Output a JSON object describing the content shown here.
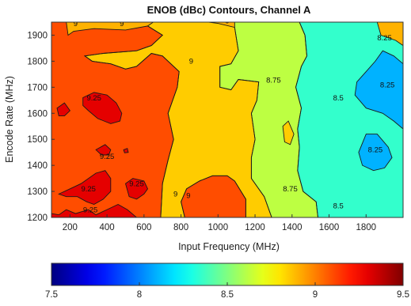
{
  "chart_data": {
    "type": "contour",
    "title": "ENOB (dBc) Contours, Channel A",
    "xlabel": "Input Frequency (MHz)",
    "ylabel": "Encode Rate (MHz)",
    "xlim": [
      100,
      2000
    ],
    "ylim": [
      1200,
      1950
    ],
    "x_ticks": [
      "200",
      "400",
      "600",
      "800",
      "1000",
      "1200",
      "1400",
      "1600",
      "1800"
    ],
    "y_ticks": [
      "1200",
      "1300",
      "1400",
      "1500",
      "1600",
      "1700",
      "1800",
      "1900"
    ],
    "colorbar": {
      "min": 7.5,
      "max": 9.5,
      "ticks": [
        "7.5",
        "8",
        "8.5",
        "9",
        "9.5"
      ],
      "colormap": "jet"
    },
    "contour_levels": [
      8.25,
      8.5,
      8.75,
      9,
      9.25
    ],
    "contour_labels": [
      {
        "text": "9",
        "x": 230,
        "y": 1935
      },
      {
        "text": "9",
        "x": 480,
        "y": 1935
      },
      {
        "text": "9",
        "x": 1050,
        "y": 1945
      },
      {
        "text": "9",
        "x": 855,
        "y": 1790
      },
      {
        "text": "8.75",
        "x": 1300,
        "y": 1718
      },
      {
        "text": "8.5",
        "x": 1650,
        "y": 1650
      },
      {
        "text": "8.25",
        "x": 1900,
        "y": 1880
      },
      {
        "text": "8.25",
        "x": 1915,
        "y": 1700
      },
      {
        "text": "8.25",
        "x": 1850,
        "y": 1450
      },
      {
        "text": "9.25",
        "x": 330,
        "y": 1650
      },
      {
        "text": "9.25",
        "x": 400,
        "y": 1425
      },
      {
        "text": "9.25",
        "x": 300,
        "y": 1300
      },
      {
        "text": "9.25",
        "x": 560,
        "y": 1320
      },
      {
        "text": "9.25",
        "x": 310,
        "y": 1220
      },
      {
        "text": "9",
        "x": 770,
        "y": 1280
      },
      {
        "text": "9",
        "x": 840,
        "y": 1275
      },
      {
        "text": "8.75",
        "x": 1390,
        "y": 1300
      },
      {
        "text": "8.5",
        "x": 1650,
        "y": 1235
      }
    ],
    "regions": [
      {
        "level": 9,
        "points": [
          [
            100,
            1950
          ],
          [
            180,
            1950
          ],
          [
            190,
            1900
          ],
          [
            220,
            1915
          ],
          [
            330,
            1925
          ],
          [
            500,
            1920
          ],
          [
            620,
            1935
          ],
          [
            700,
            1900
          ],
          [
            640,
            1860
          ],
          [
            560,
            1840
          ],
          [
            380,
            1830
          ],
          [
            280,
            1820
          ],
          [
            320,
            1800
          ],
          [
            420,
            1790
          ],
          [
            500,
            1770
          ],
          [
            560,
            1780
          ],
          [
            640,
            1830
          ],
          [
            700,
            1820
          ],
          [
            790,
            1760
          ],
          [
            780,
            1700
          ],
          [
            730,
            1600
          ],
          [
            760,
            1500
          ],
          [
            730,
            1420
          ],
          [
            700,
            1330
          ],
          [
            690,
            1200
          ],
          [
            100,
            1200
          ]
        ]
      },
      {
        "level": 9,
        "points": [
          [
            820,
            1200
          ],
          [
            800,
            1260
          ],
          [
            830,
            1310
          ],
          [
            900,
            1340
          ],
          [
            970,
            1360
          ],
          [
            1050,
            1360
          ],
          [
            1090,
            1340
          ],
          [
            1150,
            1270
          ],
          [
            1150,
            1200
          ]
        ]
      },
      {
        "level": 8.75,
        "points": [
          [
            950,
            1950
          ],
          [
            1000,
            1945
          ],
          [
            1090,
            1930
          ],
          [
            1110,
            1840
          ],
          [
            1070,
            1790
          ],
          [
            1010,
            1780
          ],
          [
            1010,
            1700
          ],
          [
            1070,
            1690
          ],
          [
            1110,
            1730
          ],
          [
            1220,
            1720
          ],
          [
            1210,
            1650
          ],
          [
            1180,
            1600
          ],
          [
            1200,
            1500
          ],
          [
            1180,
            1430
          ],
          [
            1180,
            1350
          ],
          [
            1250,
            1280
          ],
          [
            1290,
            1200
          ],
          [
            1150,
            1200
          ],
          [
            1150,
            1270
          ],
          [
            1090,
            1340
          ],
          [
            1050,
            1360
          ],
          [
            970,
            1360
          ],
          [
            900,
            1340
          ],
          [
            830,
            1310
          ],
          [
            800,
            1260
          ],
          [
            820,
            1200
          ],
          [
            690,
            1200
          ],
          [
            700,
            1330
          ],
          [
            730,
            1420
          ],
          [
            760,
            1500
          ],
          [
            730,
            1600
          ],
          [
            780,
            1700
          ],
          [
            790,
            1760
          ],
          [
            700,
            1820
          ],
          [
            640,
            1830
          ],
          [
            560,
            1780
          ],
          [
            500,
            1770
          ],
          [
            420,
            1790
          ],
          [
            320,
            1800
          ],
          [
            280,
            1820
          ],
          [
            380,
            1830
          ],
          [
            560,
            1840
          ],
          [
            640,
            1860
          ],
          [
            700,
            1900
          ],
          [
            620,
            1935
          ],
          [
            650,
            1950
          ]
        ]
      },
      {
        "level": 8.5,
        "points": [
          [
            1090,
            1950
          ],
          [
            1440,
            1950
          ],
          [
            1470,
            1900
          ],
          [
            1480,
            1820
          ],
          [
            1450,
            1780
          ],
          [
            1420,
            1700
          ],
          [
            1450,
            1620
          ],
          [
            1430,
            1540
          ],
          [
            1440,
            1470
          ],
          [
            1430,
            1380
          ],
          [
            1460,
            1300
          ],
          [
            1530,
            1260
          ],
          [
            1540,
            1200
          ],
          [
            1290,
            1200
          ],
          [
            1250,
            1280
          ],
          [
            1180,
            1350
          ],
          [
            1180,
            1430
          ],
          [
            1200,
            1500
          ],
          [
            1180,
            1600
          ],
          [
            1210,
            1650
          ],
          [
            1220,
            1720
          ],
          [
            1110,
            1730
          ],
          [
            1070,
            1690
          ],
          [
            1010,
            1700
          ],
          [
            1010,
            1780
          ],
          [
            1070,
            1790
          ],
          [
            1110,
            1840
          ],
          [
            1090,
            1930
          ]
        ]
      },
      {
        "level": 8.25,
        "points": [
          [
            1440,
            1950
          ],
          [
            1860,
            1950
          ],
          [
            1880,
            1900
          ],
          [
            1960,
            1880
          ],
          [
            2000,
            1860
          ],
          [
            2000,
            1200
          ],
          [
            1540,
            1200
          ],
          [
            1530,
            1260
          ],
          [
            1460,
            1300
          ],
          [
            1430,
            1380
          ],
          [
            1440,
            1470
          ],
          [
            1430,
            1540
          ],
          [
            1450,
            1620
          ],
          [
            1420,
            1700
          ],
          [
            1450,
            1780
          ],
          [
            1480,
            1820
          ],
          [
            1470,
            1900
          ]
        ]
      },
      {
        "level": 8.0,
        "points": [
          [
            1890,
            1840
          ],
          [
            1950,
            1820
          ],
          [
            2000,
            1790
          ],
          [
            2000,
            1540
          ],
          [
            1950,
            1570
          ],
          [
            1890,
            1600
          ],
          [
            1800,
            1620
          ],
          [
            1740,
            1670
          ],
          [
            1750,
            1720
          ],
          [
            1800,
            1760
          ],
          [
            1850,
            1800
          ]
        ]
      },
      {
        "level": 8.0,
        "points": [
          [
            1800,
            1520
          ],
          [
            1860,
            1520
          ],
          [
            1920,
            1470
          ],
          [
            1940,
            1430
          ],
          [
            1900,
            1390
          ],
          [
            1840,
            1380
          ],
          [
            1780,
            1400
          ],
          [
            1760,
            1450
          ]
        ]
      },
      {
        "level": 9.25,
        "points": [
          [
            130,
            1620
          ],
          [
            170,
            1640
          ],
          [
            200,
            1610
          ],
          [
            170,
            1590
          ],
          [
            140,
            1590
          ]
        ]
      },
      {
        "level": 9.25,
        "points": [
          [
            270,
            1660
          ],
          [
            330,
            1680
          ],
          [
            400,
            1670
          ],
          [
            450,
            1640
          ],
          [
            480,
            1600
          ],
          [
            470,
            1570
          ],
          [
            420,
            1560
          ],
          [
            350,
            1580
          ],
          [
            300,
            1610
          ],
          [
            270,
            1630
          ]
        ]
      },
      {
        "level": 9.25,
        "points": [
          [
            340,
            1460
          ],
          [
            390,
            1480
          ],
          [
            420,
            1460
          ],
          [
            410,
            1440
          ],
          [
            370,
            1440
          ]
        ]
      },
      {
        "level": 9.25,
        "points": [
          [
            490,
            1460
          ],
          [
            510,
            1465
          ],
          [
            515,
            1450
          ],
          [
            495,
            1448
          ]
        ]
      },
      {
        "level": 9.25,
        "points": [
          [
            140,
            1290
          ],
          [
            200,
            1310
          ],
          [
            260,
            1330
          ],
          [
            340,
            1370
          ],
          [
            390,
            1380
          ],
          [
            420,
            1350
          ],
          [
            420,
            1300
          ],
          [
            380,
            1270
          ],
          [
            330,
            1250
          ],
          [
            290,
            1260
          ],
          [
            240,
            1280
          ],
          [
            180,
            1280
          ]
        ]
      },
      {
        "level": 9.25,
        "points": [
          [
            500,
            1330
          ],
          [
            540,
            1350
          ],
          [
            600,
            1340
          ],
          [
            620,
            1310
          ],
          [
            600,
            1290
          ],
          [
            560,
            1270
          ],
          [
            520,
            1280
          ]
        ]
      },
      {
        "level": 9.25,
        "points": [
          [
            100,
            1200
          ],
          [
            100,
            1215
          ],
          [
            140,
            1210
          ],
          [
            180,
            1230
          ],
          [
            230,
            1215
          ],
          [
            300,
            1230
          ],
          [
            340,
            1210
          ],
          [
            400,
            1230
          ],
          [
            460,
            1250
          ],
          [
            510,
            1230
          ],
          [
            560,
            1200
          ]
        ]
      },
      {
        "level": 8.75,
        "points": [
          [
            1350,
            1550
          ],
          [
            1380,
            1570
          ],
          [
            1410,
            1520
          ],
          [
            1390,
            1480
          ],
          [
            1360,
            1490
          ]
        ]
      }
    ]
  }
}
